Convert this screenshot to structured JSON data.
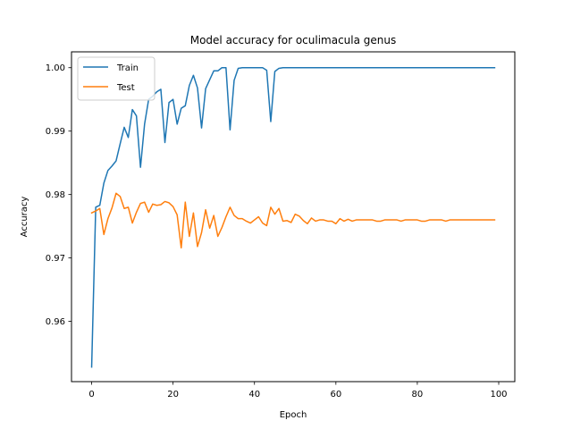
{
  "chart_data": {
    "type": "line",
    "title": "Model accuracy for oculimacula genus",
    "xlabel": "Epoch",
    "ylabel": "Accuracy",
    "xlim": [
      -4.95,
      103.95
    ],
    "ylim": [
      0.9505,
      1.0025
    ],
    "xticks": [
      0,
      20,
      40,
      60,
      80,
      100
    ],
    "yticks": [
      0.96,
      0.97,
      0.98,
      0.99,
      1.0
    ],
    "xtick_labels": [
      "0",
      "20",
      "40",
      "60",
      "80",
      "100"
    ],
    "ytick_labels": [
      "0.96",
      "0.97",
      "0.98",
      "0.99",
      "1.00"
    ],
    "legend": {
      "placement": "top-left"
    },
    "grid": false,
    "series": [
      {
        "name": "Train",
        "color": "#1f77b4",
        "x": [
          0,
          1,
          2,
          3,
          4,
          5,
          6,
          7,
          8,
          9,
          10,
          11,
          12,
          13,
          14,
          15,
          16,
          17,
          18,
          19,
          20,
          21,
          22,
          23,
          24,
          25,
          26,
          27,
          28,
          29,
          30,
          31,
          32,
          33,
          34,
          35,
          36,
          37,
          38,
          39,
          40,
          41,
          42,
          43,
          44,
          45,
          46,
          47,
          48,
          49,
          50,
          51,
          52,
          53,
          54,
          55,
          56,
          57,
          58,
          59,
          60,
          61,
          62,
          63,
          64,
          65,
          66,
          67,
          68,
          69,
          70,
          71,
          72,
          73,
          74,
          75,
          76,
          77,
          78,
          79,
          80,
          81,
          82,
          83,
          84,
          85,
          86,
          87,
          88,
          89,
          90,
          91,
          92,
          93,
          94,
          95,
          96,
          97,
          98,
          99
        ],
        "values": [
          0.9528,
          0.978,
          0.9783,
          0.9818,
          0.9838,
          0.9845,
          0.9853,
          0.988,
          0.9906,
          0.989,
          0.9934,
          0.9924,
          0.9843,
          0.9911,
          0.995,
          0.9955,
          0.9962,
          0.9966,
          0.9882,
          0.9945,
          0.995,
          0.9911,
          0.9936,
          0.994,
          0.9972,
          0.9988,
          0.9968,
          0.9905,
          0.9967,
          0.9981,
          0.9995,
          0.9995,
          1.0,
          1.0,
          0.9902,
          0.998,
          0.9999,
          1.0,
          1.0,
          1.0,
          1.0,
          1.0,
          1.0,
          0.9996,
          0.9915,
          0.9994,
          0.9999,
          1.0,
          1.0,
          1.0,
          1.0,
          1.0,
          1.0,
          1.0,
          1.0,
          1.0,
          1.0,
          1.0,
          1.0,
          1.0,
          1.0,
          1.0,
          1.0,
          1.0,
          1.0,
          1.0,
          1.0,
          1.0,
          1.0,
          1.0,
          1.0,
          1.0,
          1.0,
          1.0,
          1.0,
          1.0,
          1.0,
          1.0,
          1.0,
          1.0,
          1.0,
          1.0,
          1.0,
          1.0,
          1.0,
          1.0,
          1.0,
          1.0,
          1.0,
          1.0,
          1.0,
          1.0,
          1.0,
          1.0,
          1.0,
          1.0,
          1.0,
          1.0,
          1.0,
          1.0
        ]
      },
      {
        "name": "Test",
        "color": "#ff7f0e",
        "x": [
          0,
          1,
          2,
          3,
          4,
          5,
          6,
          7,
          8,
          9,
          10,
          11,
          12,
          13,
          14,
          15,
          16,
          17,
          18,
          19,
          20,
          21,
          22,
          23,
          24,
          25,
          26,
          27,
          28,
          29,
          30,
          31,
          32,
          33,
          34,
          35,
          36,
          37,
          38,
          39,
          40,
          41,
          42,
          43,
          44,
          45,
          46,
          47,
          48,
          49,
          50,
          51,
          52,
          53,
          54,
          55,
          56,
          57,
          58,
          59,
          60,
          61,
          62,
          63,
          64,
          65,
          66,
          67,
          68,
          69,
          70,
          71,
          72,
          73,
          74,
          75,
          76,
          77,
          78,
          79,
          80,
          81,
          82,
          83,
          84,
          85,
          86,
          87,
          88,
          89,
          90,
          91,
          92,
          93,
          94,
          95,
          96,
          97,
          98,
          99
        ],
        "values": [
          0.9771,
          0.9774,
          0.9778,
          0.9737,
          0.9762,
          0.9779,
          0.9802,
          0.9797,
          0.9778,
          0.978,
          0.9755,
          0.9772,
          0.9786,
          0.9788,
          0.9772,
          0.9785,
          0.9783,
          0.9784,
          0.9789,
          0.9787,
          0.9781,
          0.9768,
          0.9716,
          0.9788,
          0.9734,
          0.9771,
          0.9718,
          0.974,
          0.9776,
          0.9747,
          0.9767,
          0.9734,
          0.9748,
          0.9765,
          0.978,
          0.9767,
          0.9762,
          0.9762,
          0.9758,
          0.9755,
          0.976,
          0.9765,
          0.9755,
          0.9751,
          0.978,
          0.9769,
          0.9778,
          0.9758,
          0.9759,
          0.9756,
          0.9769,
          0.9766,
          0.9759,
          0.9754,
          0.9763,
          0.9758,
          0.976,
          0.976,
          0.9758,
          0.9758,
          0.9754,
          0.9762,
          0.9758,
          0.9761,
          0.9758,
          0.976,
          0.976,
          0.976,
          0.976,
          0.976,
          0.9758,
          0.9758,
          0.976,
          0.976,
          0.976,
          0.976,
          0.9758,
          0.976,
          0.976,
          0.976,
          0.976,
          0.9758,
          0.9758,
          0.976,
          0.976,
          0.976,
          0.976,
          0.9758,
          0.976,
          0.976,
          0.976,
          0.976,
          0.976,
          0.976,
          0.976,
          0.976,
          0.976,
          0.976,
          0.976,
          0.976
        ]
      }
    ]
  }
}
